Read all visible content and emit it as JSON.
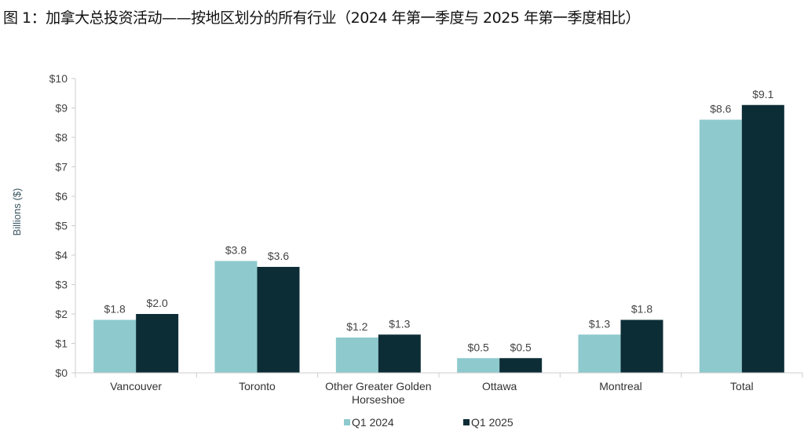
{
  "title": "图 1：加拿大总投资活动——按地区划分的所有行业（2024 年第一季度与 2025 年第一季度相比）",
  "chart_data": {
    "type": "bar",
    "title": "图 1：加拿大总投资活动——按地区划分的所有行业（2024 年第一季度与 2025 年第一季度相比）",
    "xlabel": "",
    "ylabel": "Billions ($)",
    "ylim": [
      0,
      10
    ],
    "yticks": [
      "$0",
      "$1",
      "$2",
      "$3",
      "$4",
      "$5",
      "$6",
      "$7",
      "$8",
      "$9",
      "$10"
    ],
    "grid": false,
    "legend_position": "bottom-center",
    "categories": [
      [
        "Vancouver"
      ],
      [
        "Toronto"
      ],
      [
        "Other Greater Golden",
        "Horseshoe"
      ],
      [
        "Ottawa"
      ],
      [
        "Montreal"
      ],
      [
        "Total"
      ]
    ],
    "series": [
      {
        "name": "Q1 2024",
        "color": "#8ecacd",
        "values": [
          1.8,
          3.8,
          1.2,
          0.5,
          1.3,
          8.6
        ],
        "labels": [
          "$1.8",
          "$3.8",
          "$1.2",
          "$0.5",
          "$1.3",
          "$8.6"
        ]
      },
      {
        "name": "Q1 2025",
        "color": "#0d2d36",
        "values": [
          2.0,
          3.6,
          1.3,
          0.5,
          1.8,
          9.1
        ],
        "labels": [
          "$2.0",
          "$3.6",
          "$1.3",
          "$0.5",
          "$1.8",
          "$9.1"
        ]
      }
    ]
  }
}
